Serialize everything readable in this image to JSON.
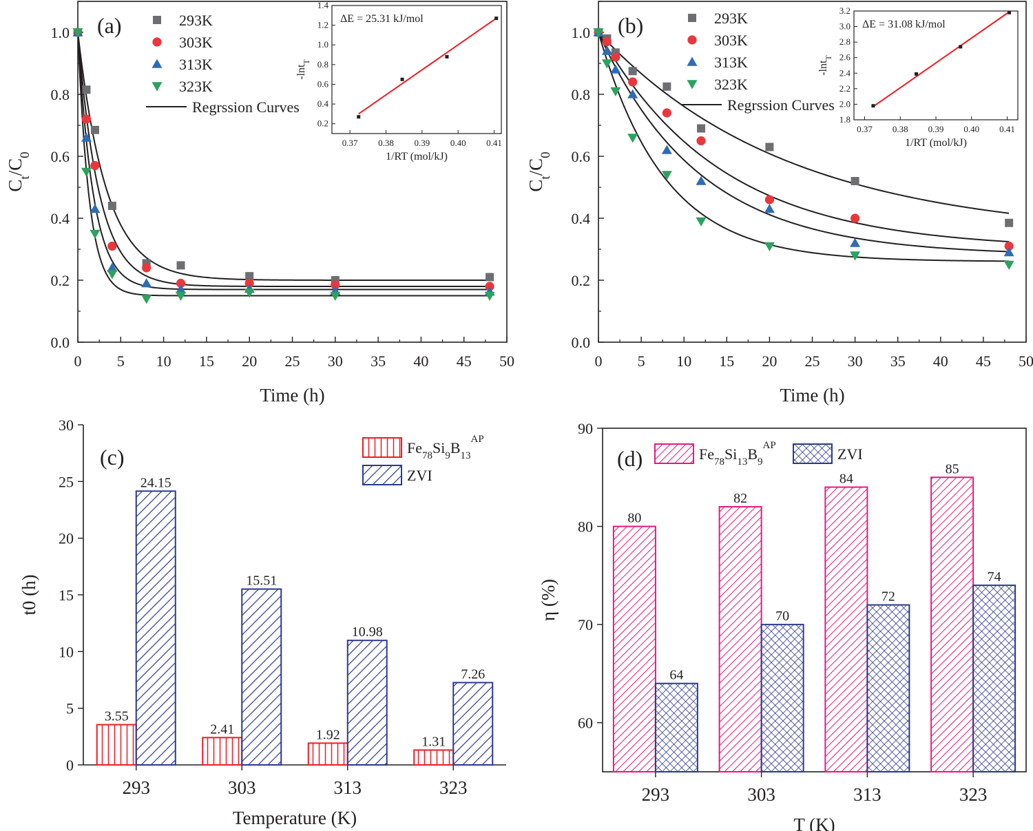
{
  "figure": {
    "description_free": true
  },
  "chart_data": [
    {
      "panel": "a",
      "type": "scatter",
      "panel_label": "(a)",
      "xlabel": "Time (h)",
      "ylabel": "Ct/C0",
      "xlim": [
        0,
        50
      ],
      "ylim": [
        0,
        1.1
      ],
      "xticks": [
        0,
        5,
        10,
        15,
        20,
        25,
        30,
        35,
        40,
        45,
        50
      ],
      "yticks": [
        0.0,
        0.2,
        0.4,
        0.6,
        0.8,
        1.0
      ],
      "x": [
        0,
        1,
        2,
        4,
        8,
        12,
        20,
        30,
        48
      ],
      "series": [
        {
          "name": "293K",
          "marker": "square",
          "color": "#6d6e71",
          "values": [
            1.0,
            0.815,
            0.685,
            0.44,
            0.255,
            0.248,
            0.213,
            0.2,
            0.21
          ]
        },
        {
          "name": "303K",
          "marker": "circle",
          "color": "#e8383d",
          "values": [
            1.0,
            0.72,
            0.57,
            0.31,
            0.24,
            0.19,
            0.19,
            0.185,
            0.18
          ]
        },
        {
          "name": "313K",
          "marker": "triangle-up",
          "color": "#2e6db4",
          "values": [
            1.0,
            0.66,
            0.43,
            0.24,
            0.19,
            0.17,
            0.172,
            0.165,
            0.163
          ]
        },
        {
          "name": "323K",
          "marker": "triangle-down",
          "color": "#2ca25f",
          "values": [
            1.0,
            0.55,
            0.35,
            0.22,
            0.14,
            0.15,
            0.16,
            0.15,
            0.15
          ]
        }
      ],
      "curves": [
        {
          "c_inf": 0.2,
          "k": 0.3
        },
        {
          "c_inf": 0.18,
          "k": 0.4
        },
        {
          "c_inf": 0.17,
          "k": 0.55
        },
        {
          "c_inf": 0.15,
          "k": 0.75
        }
      ],
      "curve_label": "Regrssion Curves",
      "inset": {
        "annotation": "ΔE = 25.31 kJ/mol",
        "xlabel": "1/RT (mol/kJ)",
        "ylabel": "-lnτ",
        "ylabel_main": "-lnt",
        "ylabel_sub": "T",
        "xlim": [
          0.365,
          0.412
        ],
        "ylim": [
          0.1,
          1.4
        ],
        "xticks": [
          0.37,
          0.38,
          0.39,
          0.4,
          0.41
        ],
        "xtick_labels": [
          "0.37",
          "0.38",
          "0.39",
          "0.40",
          "0.41"
        ],
        "yticks": [
          0.2,
          0.4,
          0.6,
          0.8,
          1.0,
          1.2,
          1.4
        ],
        "ytick_labels": [
          "0.2",
          "0.4",
          "0.6",
          "0.8",
          "1.0",
          "1.2",
          "1.4"
        ],
        "x": [
          0.3724,
          0.3845,
          0.3969,
          0.4106
        ],
        "y": [
          0.27,
          0.65,
          0.88,
          1.27
        ],
        "fit": {
          "x": [
            0.3724,
            0.4106
          ],
          "y": [
            0.3,
            1.27
          ]
        }
      }
    },
    {
      "panel": "b",
      "type": "scatter",
      "panel_label": "(b)",
      "xlabel": "Time (h)",
      "ylabel": "Ct/C0",
      "xlim": [
        0,
        50
      ],
      "ylim": [
        0,
        1.1
      ],
      "xticks": [
        0,
        5,
        10,
        15,
        20,
        25,
        30,
        35,
        40,
        45,
        50
      ],
      "yticks": [
        0.0,
        0.2,
        0.4,
        0.6,
        0.8,
        1.0
      ],
      "x": [
        0,
        1,
        2,
        4,
        8,
        12,
        20,
        30,
        48
      ],
      "series": [
        {
          "name": "293K",
          "marker": "square",
          "color": "#6d6e71",
          "values": [
            1.0,
            0.98,
            0.935,
            0.875,
            0.825,
            0.69,
            0.63,
            0.52,
            0.385
          ]
        },
        {
          "name": "303K",
          "marker": "circle",
          "color": "#e8383d",
          "values": [
            1.0,
            0.97,
            0.92,
            0.84,
            0.74,
            0.65,
            0.46,
            0.4,
            0.31
          ]
        },
        {
          "name": "313K",
          "marker": "triangle-up",
          "color": "#2e6db4",
          "values": [
            1.0,
            0.94,
            0.88,
            0.8,
            0.62,
            0.52,
            0.43,
            0.32,
            0.29
          ]
        },
        {
          "name": "323K",
          "marker": "triangle-down",
          "color": "#2ca25f",
          "values": [
            1.0,
            0.9,
            0.81,
            0.66,
            0.54,
            0.39,
            0.31,
            0.28,
            0.25
          ]
        }
      ],
      "curves": [
        {
          "c_inf": 0.34,
          "k": 0.045
        },
        {
          "c_inf": 0.3,
          "k": 0.07
        },
        {
          "c_inf": 0.28,
          "k": 0.085
        },
        {
          "c_inf": 0.26,
          "k": 0.13
        }
      ],
      "curve_label": "Regrssion Curves",
      "inset": {
        "annotation": "ΔE = 31.08 kJ/mol",
        "xlabel": "1/RT (mol/kJ)",
        "ylabel": "-lnτ",
        "ylabel_main": "-lnt",
        "ylabel_sub": "T",
        "xlim": [
          0.367,
          0.413
        ],
        "ylim": [
          1.8,
          3.2
        ],
        "xticks": [
          0.37,
          0.38,
          0.39,
          0.4,
          0.41
        ],
        "xtick_labels": [
          "0.37",
          "0.38",
          "0.39",
          "0.40",
          "0.41"
        ],
        "yticks": [
          1.8,
          2.0,
          2.2,
          2.4,
          2.6,
          2.8,
          3.0,
          3.2
        ],
        "ytick_labels": [
          "1.8",
          "2.0",
          "2.2",
          "2.4",
          "2.6",
          "2.8",
          "3.0",
          "3.2"
        ],
        "x": [
          0.3724,
          0.3845,
          0.3969,
          0.4106
        ],
        "y": [
          1.98,
          2.39,
          2.74,
          3.18
        ],
        "fit": {
          "x": [
            0.3724,
            0.4106
          ],
          "y": [
            1.97,
            3.19
          ]
        }
      }
    },
    {
      "panel": "c",
      "type": "bar",
      "panel_label": "(c)",
      "xlabel": "Temperature (K)",
      "ylabel": "t0 (h)",
      "ylim": [
        0,
        30
      ],
      "yticks": [
        0,
        5,
        10,
        15,
        20,
        25,
        30
      ],
      "categories": [
        "293",
        "303",
        "313",
        "323"
      ],
      "series": [
        {
          "name": "Fe78Si9B13AP",
          "name_parts": [
            "Fe",
            "78",
            "Si",
            "9",
            "B",
            "13",
            "AP"
          ],
          "color": "#ed1c24",
          "pattern": "vertical",
          "values": [
            3.55,
            2.41,
            1.92,
            1.31
          ],
          "labels": [
            "3.55",
            "2.41",
            "1.92",
            "1.31"
          ]
        },
        {
          "name": "ZVI",
          "color": "#2b3990",
          "pattern": "diagonal",
          "values": [
            24.15,
            15.51,
            10.98,
            7.26
          ],
          "labels": [
            "24.15",
            "15.51",
            "10.98",
            "7.26"
          ]
        }
      ]
    },
    {
      "panel": "d",
      "type": "bar",
      "panel_label": "(d)",
      "xlabel": "T (K)",
      "ylabel": "η (%)",
      "ylim": [
        55,
        90
      ],
      "yticks": [
        60,
        70,
        80,
        90
      ],
      "categories": [
        "293",
        "303",
        "313",
        "323"
      ],
      "series": [
        {
          "name": "Fe78Si13B9AP",
          "name_parts": [
            "Fe",
            "78",
            "Si",
            "13",
            "B",
            "9",
            "AP"
          ],
          "color": "#e6187f",
          "pattern": "diagonal",
          "values": [
            80,
            82,
            84,
            85
          ],
          "labels": [
            "80",
            "82",
            "84",
            "85"
          ]
        },
        {
          "name": "ZVI",
          "color": "#2b3990",
          "pattern": "crosshatch",
          "values": [
            64,
            70,
            72,
            74
          ],
          "labels": [
            "64",
            "70",
            "72",
            "74"
          ]
        }
      ]
    }
  ]
}
